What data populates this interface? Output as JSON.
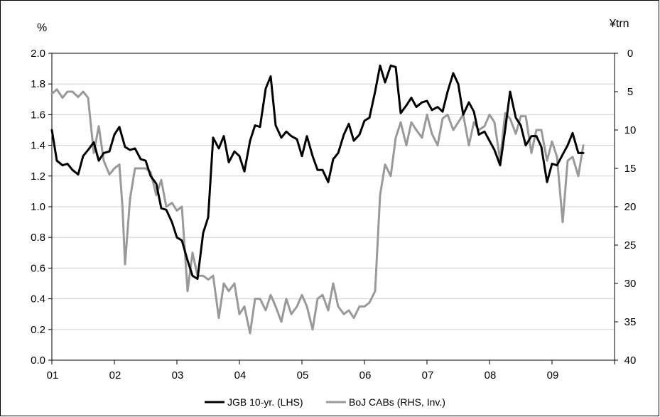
{
  "chart_data": {
    "type": "line",
    "left_axis_unit": "%",
    "right_axis_unit": "¥trn",
    "x_tick_labels": [
      "01",
      "02",
      "03",
      "04",
      "05",
      "06",
      "07",
      "08",
      "09"
    ],
    "y_left": {
      "min": 0.0,
      "max": 2.0,
      "step": 0.2,
      "tick_labels": [
        "0.0",
        "0.2",
        "0.4",
        "0.6",
        "0.8",
        "1.0",
        "1.2",
        "1.4",
        "1.6",
        "1.8",
        "2.0"
      ]
    },
    "y_right": {
      "min": 0,
      "max": 40,
      "step": 5,
      "inverted": true,
      "tick_labels": [
        "0",
        "5",
        "10",
        "15",
        "20",
        "25",
        "30",
        "35",
        "40"
      ]
    },
    "grid": "horizontal",
    "legend_position": "bottom",
    "series": [
      {
        "name": "JGB 10-yr. (LHS)",
        "axis": "left",
        "color": "#000000",
        "x": [
          2001.0,
          2001.08,
          2001.17,
          2001.25,
          2001.33,
          2001.42,
          2001.5,
          2001.58,
          2001.67,
          2001.75,
          2001.83,
          2001.92,
          2002.0,
          2002.08,
          2002.17,
          2002.25,
          2002.33,
          2002.42,
          2002.5,
          2002.58,
          2002.67,
          2002.75,
          2002.83,
          2002.92,
          2003.0,
          2003.08,
          2003.17,
          2003.25,
          2003.33,
          2003.42,
          2003.5,
          2003.58,
          2003.67,
          2003.75,
          2003.83,
          2003.92,
          2004.0,
          2004.08,
          2004.17,
          2004.25,
          2004.33,
          2004.42,
          2004.5,
          2004.58,
          2004.67,
          2004.75,
          2004.83,
          2004.92,
          2005.0,
          2005.08,
          2005.17,
          2005.25,
          2005.33,
          2005.42,
          2005.5,
          2005.58,
          2005.67,
          2005.75,
          2005.83,
          2005.92,
          2006.0,
          2006.08,
          2006.17,
          2006.25,
          2006.33,
          2006.42,
          2006.5,
          2006.58,
          2006.67,
          2006.75,
          2006.83,
          2006.92,
          2007.0,
          2007.08,
          2007.17,
          2007.25,
          2007.33,
          2007.42,
          2007.5,
          2007.58,
          2007.67,
          2007.75,
          2007.83,
          2007.92,
          2008.0,
          2008.08,
          2008.17,
          2008.25,
          2008.33,
          2008.42,
          2008.5,
          2008.58,
          2008.67,
          2008.75,
          2008.83,
          2008.92,
          2009.0,
          2009.08,
          2009.17,
          2009.25,
          2009.33,
          2009.42,
          2009.5
        ],
        "y": [
          1.5,
          1.3,
          1.27,
          1.28,
          1.24,
          1.21,
          1.33,
          1.37,
          1.42,
          1.3,
          1.35,
          1.36,
          1.47,
          1.52,
          1.39,
          1.37,
          1.38,
          1.31,
          1.3,
          1.2,
          1.15,
          0.99,
          0.98,
          0.9,
          0.8,
          0.78,
          0.65,
          0.55,
          0.53,
          0.83,
          0.93,
          1.45,
          1.38,
          1.46,
          1.29,
          1.36,
          1.33,
          1.23,
          1.43,
          1.53,
          1.52,
          1.77,
          1.85,
          1.53,
          1.45,
          1.49,
          1.46,
          1.44,
          1.33,
          1.46,
          1.33,
          1.24,
          1.24,
          1.16,
          1.31,
          1.35,
          1.47,
          1.54,
          1.43,
          1.47,
          1.56,
          1.58,
          1.75,
          1.92,
          1.81,
          1.92,
          1.91,
          1.61,
          1.66,
          1.71,
          1.65,
          1.68,
          1.69,
          1.63,
          1.65,
          1.62,
          1.75,
          1.87,
          1.8,
          1.6,
          1.68,
          1.62,
          1.47,
          1.49,
          1.43,
          1.37,
          1.27,
          1.5,
          1.75,
          1.58,
          1.53,
          1.4,
          1.46,
          1.46,
          1.39,
          1.16,
          1.28,
          1.27,
          1.34,
          1.4,
          1.48,
          1.35,
          1.35
        ]
      },
      {
        "name": "BoJ CABs (RHS, Inv.)",
        "axis": "right",
        "color": "#999999",
        "x": [
          2001.0,
          2001.08,
          2001.17,
          2001.25,
          2001.33,
          2001.42,
          2001.5,
          2001.58,
          2001.67,
          2001.75,
          2001.83,
          2001.92,
          2002.0,
          2002.08,
          2002.13,
          2002.17,
          2002.25,
          2002.33,
          2002.42,
          2002.5,
          2002.58,
          2002.67,
          2002.75,
          2002.83,
          2002.92,
          2003.0,
          2003.08,
          2003.17,
          2003.25,
          2003.33,
          2003.42,
          2003.5,
          2003.58,
          2003.67,
          2003.75,
          2003.83,
          2003.92,
          2004.0,
          2004.08,
          2004.17,
          2004.25,
          2004.33,
          2004.42,
          2004.5,
          2004.58,
          2004.67,
          2004.75,
          2004.83,
          2004.92,
          2005.0,
          2005.08,
          2005.17,
          2005.25,
          2005.33,
          2005.42,
          2005.5,
          2005.58,
          2005.67,
          2005.75,
          2005.83,
          2005.92,
          2006.0,
          2006.08,
          2006.17,
          2006.25,
          2006.33,
          2006.42,
          2006.5,
          2006.58,
          2006.67,
          2006.75,
          2006.83,
          2006.92,
          2007.0,
          2007.08,
          2007.17,
          2007.25,
          2007.33,
          2007.42,
          2007.5,
          2007.58,
          2007.67,
          2007.75,
          2007.83,
          2007.92,
          2008.0,
          2008.08,
          2008.17,
          2008.25,
          2008.33,
          2008.42,
          2008.5,
          2008.58,
          2008.67,
          2008.75,
          2008.83,
          2008.92,
          2009.0,
          2009.08,
          2009.17,
          2009.25,
          2009.33,
          2009.42,
          2009.5
        ],
        "y": [
          5.3,
          4.7,
          5.8,
          5.0,
          5.0,
          5.7,
          5.0,
          5.8,
          13.0,
          9.5,
          14.0,
          15.8,
          15.0,
          14.5,
          20.0,
          27.5,
          19.0,
          15.0,
          15.0,
          15.0,
          15.5,
          18.5,
          16.5,
          20.0,
          19.5,
          20.5,
          20.0,
          31.0,
          26.0,
          29.0,
          29.0,
          29.5,
          29.0,
          34.5,
          30.0,
          31.0,
          30.0,
          34.0,
          33.0,
          36.5,
          32.0,
          32.0,
          33.5,
          31.5,
          33.0,
          35.0,
          32.0,
          34.0,
          33.0,
          31.5,
          33.0,
          36.0,
          32.0,
          31.5,
          33.5,
          30.0,
          33.0,
          34.0,
          33.5,
          34.5,
          33.0,
          33.0,
          32.5,
          31.0,
          18.5,
          14.5,
          16.0,
          11.0,
          9.0,
          12.0,
          9.0,
          10.0,
          11.0,
          8.0,
          10.5,
          12.0,
          8.5,
          8.0,
          10.0,
          9.0,
          8.0,
          12.0,
          9.0,
          10.0,
          9.5,
          8.0,
          9.0,
          14.0,
          7.8,
          8.5,
          10.5,
          8.2,
          8.2,
          13.0,
          10.0,
          10.0,
          14.0,
          11.5,
          13.5,
          22.0,
          14.0,
          13.5,
          16.0,
          12.0
        ]
      }
    ]
  }
}
